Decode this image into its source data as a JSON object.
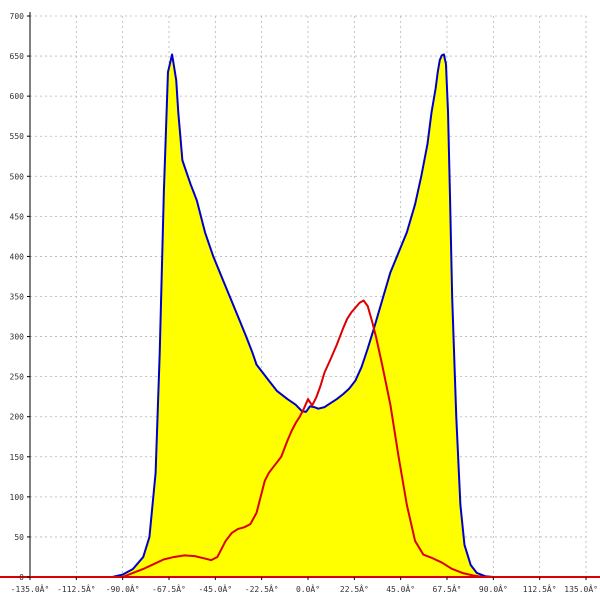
{
  "chart_data": {
    "type": "area",
    "title": "",
    "xlabel": "",
    "ylabel": "",
    "xlim": [
      -135,
      135
    ],
    "ylim": [
      0,
      700
    ],
    "grid": true,
    "x_tick_values": [
      -135,
      -112.5,
      -90,
      -67.5,
      -45,
      -22.5,
      0,
      22.5,
      45,
      67.5,
      90,
      112.5,
      135
    ],
    "x_tick_labels": [
      "-135.0Â°",
      "-112.5Â°",
      "-90.0Â°",
      "-67.5Â°",
      "-45.0Â°",
      "-22.5Â°",
      "0.0Â°",
      "22.5Â°",
      "45.0Â°",
      "67.5Â°",
      "90.0Â°",
      "112.5Â°",
      "135.0Â°"
    ],
    "y_tick_values": [
      0,
      50,
      100,
      150,
      200,
      250,
      300,
      350,
      400,
      450,
      500,
      550,
      600,
      650,
      700
    ],
    "y_tick_labels": [
      "0",
      "50",
      "100",
      "150",
      "200",
      "250",
      "300",
      "350",
      "400",
      "450",
      "500",
      "550",
      "600",
      "650",
      "700"
    ],
    "series": [
      {
        "color": "#0000cc",
        "fill": "#ffff00",
        "x": [
          -135,
          -95,
          -90,
          -85,
          -80,
          -77,
          -74,
          -72,
          -70,
          -68,
          -66,
          -64,
          -63,
          -61,
          -59,
          -57,
          -54,
          -50,
          -46,
          -42,
          -38,
          -34,
          -30,
          -27,
          -25,
          -22,
          -19,
          -15,
          -10,
          -6,
          -3,
          -1,
          1,
          3,
          5,
          8,
          11,
          14,
          17,
          20,
          23,
          26,
          29,
          32,
          36,
          40,
          44,
          48,
          52,
          55,
          58,
          60,
          62,
          63,
          64,
          65,
          66,
          67,
          68,
          69,
          70,
          72,
          74,
          76,
          79,
          82,
          86,
          90,
          135
        ],
        "y": [
          0,
          0,
          3,
          10,
          25,
          50,
          130,
          280,
          480,
          630,
          652,
          620,
          580,
          520,
          505,
          490,
          470,
          430,
          400,
          375,
          350,
          325,
          300,
          280,
          265,
          255,
          245,
          232,
          222,
          215,
          207,
          206,
          213,
          212,
          210,
          212,
          217,
          222,
          228,
          235,
          245,
          262,
          285,
          310,
          345,
          380,
          405,
          430,
          465,
          500,
          540,
          580,
          610,
          630,
          645,
          651,
          652,
          640,
          580,
          470,
          350,
          200,
          90,
          40,
          15,
          5,
          1,
          0,
          0
        ]
      },
      {
        "color": "#dd0000",
        "x": [
          -135,
          -90,
          -85,
          -80,
          -75,
          -70,
          -65,
          -60,
          -55,
          -50,
          -47,
          -44,
          -42,
          -40,
          -37,
          -34,
          -31,
          -28,
          -25,
          -23,
          -21,
          -19,
          -16,
          -13,
          -10,
          -8,
          -6,
          -4,
          -2,
          0,
          2,
          4,
          6,
          8,
          11,
          14,
          17,
          19,
          21,
          23,
          25,
          27,
          29,
          31,
          33,
          36,
          40,
          44,
          48,
          52,
          56,
          60,
          65,
          70,
          75,
          80,
          85,
          90,
          135
        ],
        "y": [
          0,
          0,
          5,
          10,
          16,
          22,
          25,
          27,
          26,
          23,
          21,
          25,
          35,
          45,
          55,
          60,
          62,
          66,
          80,
          100,
          120,
          130,
          140,
          150,
          170,
          182,
          192,
          200,
          210,
          222,
          214,
          224,
          238,
          255,
          272,
          290,
          310,
          322,
          330,
          336,
          342,
          345,
          338,
          320,
          300,
          265,
          215,
          150,
          90,
          45,
          28,
          24,
          18,
          10,
          5,
          2,
          0,
          0,
          0
        ]
      }
    ]
  }
}
